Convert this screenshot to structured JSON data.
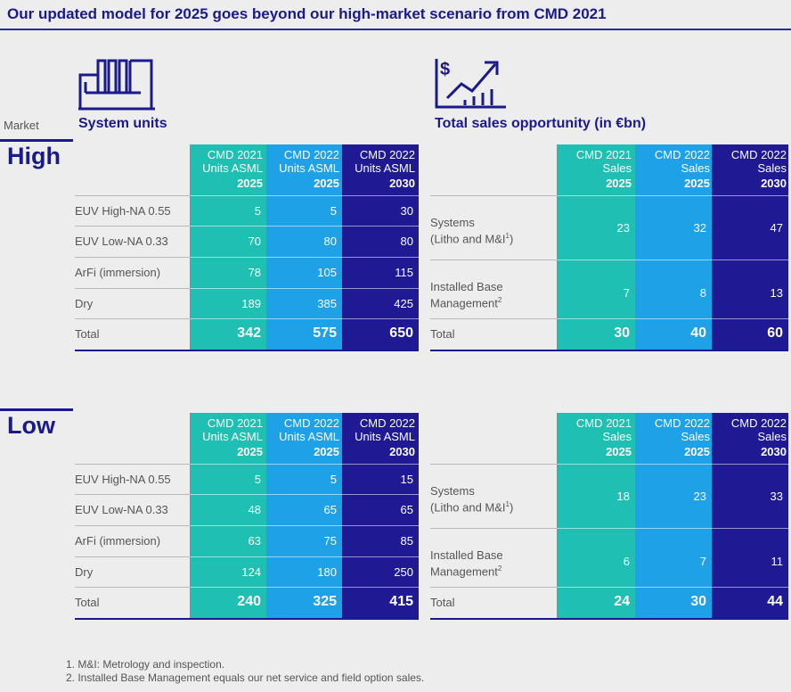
{
  "title": "Our updated model for 2025 goes beyond our high-market scenario from CMD 2021",
  "market_label": "Market",
  "system_units_title": "System units",
  "sales_title": "Total sales opportunity (in €bn)",
  "units_headers": [
    {
      "line1": "CMD 2021",
      "line2": "Units ASML",
      "year": "2025"
    },
    {
      "line1": "CMD 2022",
      "line2": "Units ASML",
      "year": "2025"
    },
    {
      "line1": "CMD 2022",
      "line2": "Units ASML",
      "year": "2030"
    }
  ],
  "sales_headers": [
    {
      "line1": "CMD 2021",
      "line2": "Sales",
      "year": "2025"
    },
    {
      "line1": "CMD 2022",
      "line2": "Sales",
      "year": "2025"
    },
    {
      "line1": "CMD 2022",
      "line2": "Sales",
      "year": "2030"
    }
  ],
  "unit_rows": [
    "EUV High-NA 0.55",
    "EUV Low-NA 0.33",
    "ArFi (immersion)",
    "Dry",
    "Total"
  ],
  "sales_rows": [
    {
      "line1": "Systems",
      "line2": "(Litho and M&I",
      "sup": "1",
      ")": ""
    },
    {
      "line1": "Installed Base",
      "line2": "Management",
      "sup": "2"
    },
    {
      "line1": "Total"
    }
  ],
  "high": {
    "label": "High",
    "units": [
      [
        "5",
        "5",
        "30"
      ],
      [
        "70",
        "80",
        "80"
      ],
      [
        "78",
        "105",
        "115"
      ],
      [
        "189",
        "385",
        "425"
      ],
      [
        "342",
        "575",
        "650"
      ]
    ],
    "sales": [
      [
        "23",
        "32",
        "47"
      ],
      [
        "7",
        "8",
        "13"
      ],
      [
        "30",
        "40",
        "60"
      ]
    ]
  },
  "low": {
    "label": "Low",
    "units": [
      [
        "5",
        "5",
        "15"
      ],
      [
        "48",
        "65",
        "65"
      ],
      [
        "63",
        "75",
        "85"
      ],
      [
        "124",
        "180",
        "250"
      ],
      [
        "240",
        "325",
        "415"
      ]
    ],
    "sales": [
      [
        "18",
        "23",
        "33"
      ],
      [
        "6",
        "7",
        "11"
      ],
      [
        "24",
        "30",
        "44"
      ]
    ]
  },
  "footnotes": [
    "1. M&I: Metrology and inspection.",
    "2. Installed Base Management equals our net service and field option sales."
  ],
  "colors": {
    "teal": "#1fc0b3",
    "blue": "#1ea1e6",
    "navy": "#1f1a94",
    "title": "#1a1a8c"
  }
}
